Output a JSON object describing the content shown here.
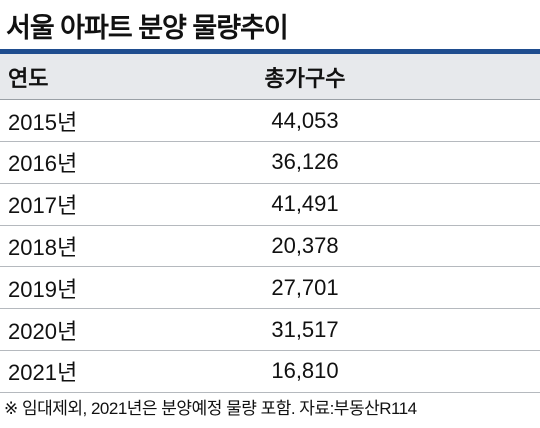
{
  "header": {
    "title": "서울 아파트 분양 물량추이"
  },
  "table": {
    "columns": [
      "연도",
      "총가구수"
    ],
    "rows": [
      [
        "2015년",
        "44,053"
      ],
      [
        "2016년",
        "36,126"
      ],
      [
        "2017년",
        "41,491"
      ],
      [
        "2018년",
        "20,378"
      ],
      [
        "2019년",
        "27,701"
      ],
      [
        "2020년",
        "31,517"
      ],
      [
        "2021년",
        "16,810"
      ]
    ]
  },
  "footer": {
    "note": "※ 임대제외, 2021년은 분양예정 물량 포함.  자료:부동산R114"
  }
}
